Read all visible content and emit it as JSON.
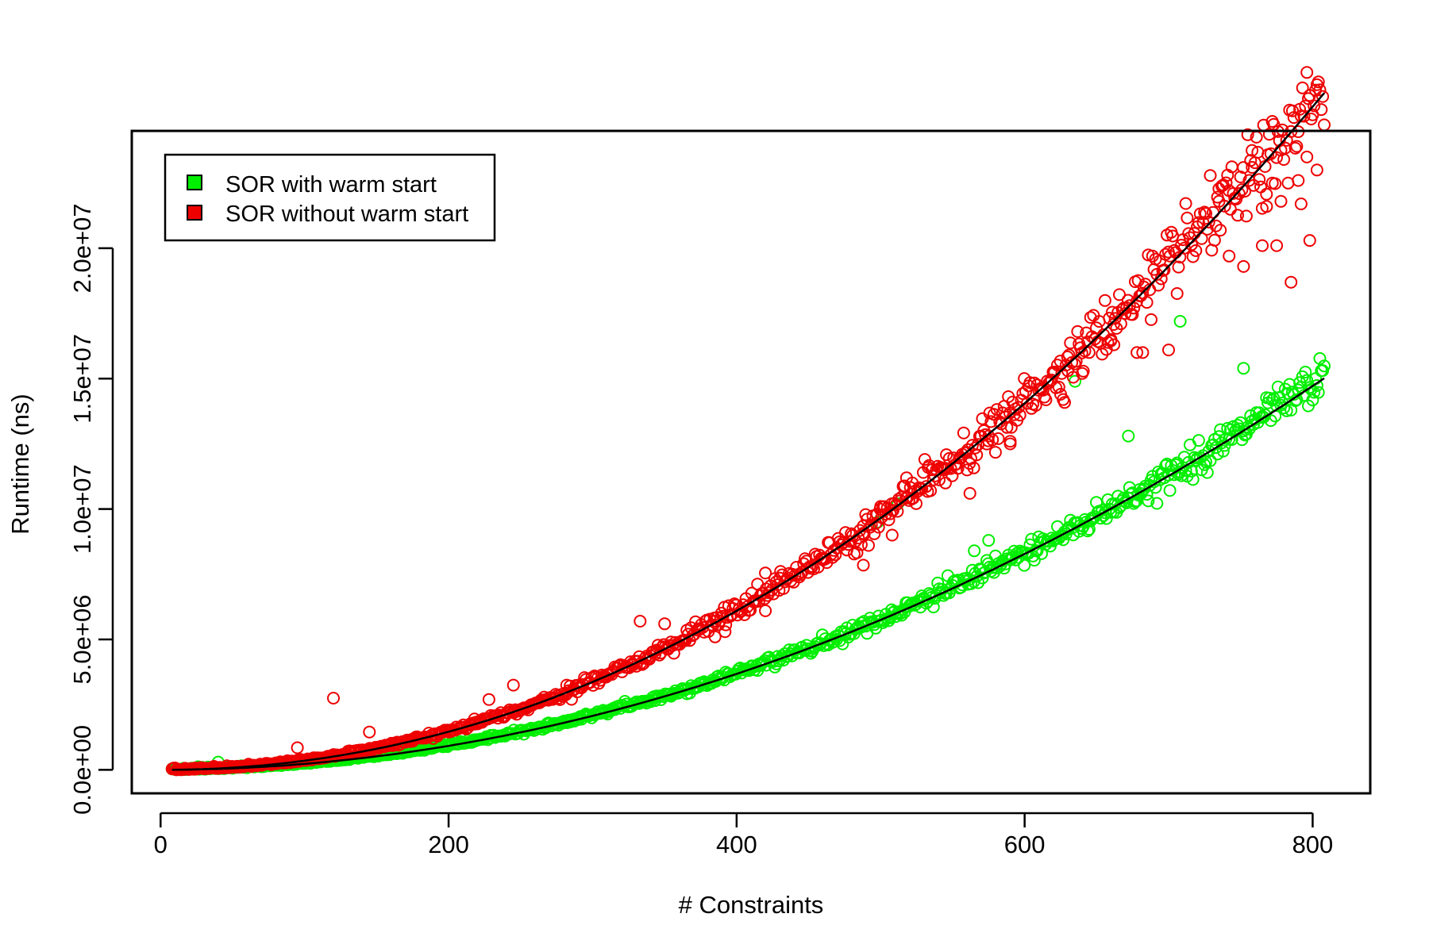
{
  "chart_data": {
    "type": "scatter",
    "xlabel": "# Constraints",
    "ylabel": "Runtime (ns)",
    "xlim": [
      -20,
      840
    ],
    "ylim": [
      -900000,
      24500000
    ],
    "x_ticks": [
      0,
      200,
      400,
      600,
      800
    ],
    "x_tick_labels": [
      "0",
      "200",
      "400",
      "600",
      "800"
    ],
    "y_ticks": [
      0,
      5000000,
      10000000,
      15000000,
      20000000
    ],
    "y_tick_labels": [
      "0.0e+00",
      "5.0e+06",
      "1.0e+07",
      "1.5e+07",
      "2.0e+07"
    ],
    "x_range": [
      8,
      808
    ],
    "grid": false,
    "legend_position": "top-left",
    "series": [
      {
        "name": "SOR with warm start",
        "color": "#00ee00",
        "marker": "open-circle",
        "fit": {
          "a": 23,
          "b": 2.0
        },
        "n_points": 800,
        "spread": 0.025,
        "outliers": [
          [
            40,
            300000
          ],
          [
            498,
            9500000
          ],
          [
            512,
            10200000
          ],
          [
            565,
            8400000
          ],
          [
            575,
            8800000
          ],
          [
            635,
            14900000
          ],
          [
            672,
            12800000
          ],
          [
            708,
            17200000
          ],
          [
            752,
            15400000
          ]
        ]
      },
      {
        "name": "SOR without warm start",
        "color": "#ee0000",
        "marker": "open-circle",
        "fit": {
          "a": 26.6,
          "b": 2.06
        },
        "n_points": 800,
        "spread": 0.03,
        "outliers": [
          [
            95,
            850000
          ],
          [
            120,
            2750000
          ],
          [
            145,
            1450000
          ],
          [
            200,
            1450000
          ],
          [
            218,
            1950000
          ],
          [
            228,
            2700000
          ],
          [
            245,
            3250000
          ],
          [
            282,
            3250000
          ],
          [
            290,
            3250000
          ],
          [
            333,
            5700000
          ],
          [
            350,
            5600000
          ],
          [
            385,
            5100000
          ],
          [
            392,
            5300000
          ],
          [
            420,
            7550000
          ],
          [
            420,
            6100000
          ],
          [
            430,
            7350000
          ],
          [
            460,
            8050000
          ],
          [
            488,
            9350000
          ],
          [
            488,
            7850000
          ],
          [
            500,
            10100000
          ],
          [
            508,
            9950000
          ],
          [
            508,
            9000000
          ],
          [
            518,
            11200000
          ],
          [
            522,
            11000000
          ],
          [
            533,
            11600000
          ],
          [
            545,
            11000000
          ],
          [
            560,
            11500000
          ],
          [
            562,
            10600000
          ],
          [
            575,
            12800000
          ],
          [
            590,
            12600000
          ],
          [
            590,
            12500000
          ],
          [
            620,
            15200000
          ],
          [
            625,
            14400000
          ],
          [
            630,
            15300000
          ],
          [
            640,
            15200000
          ],
          [
            660,
            16500000
          ],
          [
            662,
            16300000
          ],
          [
            678,
            16000000
          ],
          [
            682,
            16000000
          ],
          [
            700,
            16100000
          ],
          [
            735,
            21800000
          ],
          [
            742,
            19700000
          ],
          [
            752,
            19300000
          ],
          [
            758,
            23100000
          ],
          [
            765,
            20100000
          ],
          [
            768,
            21600000
          ],
          [
            772,
            22500000
          ],
          [
            775,
            20100000
          ],
          [
            778,
            21800000
          ],
          [
            785,
            18700000
          ],
          [
            790,
            22600000
          ],
          [
            792,
            21700000
          ],
          [
            796,
            23500000
          ],
          [
            798,
            20300000
          ],
          [
            803,
            23000000
          ]
        ]
      }
    ]
  }
}
